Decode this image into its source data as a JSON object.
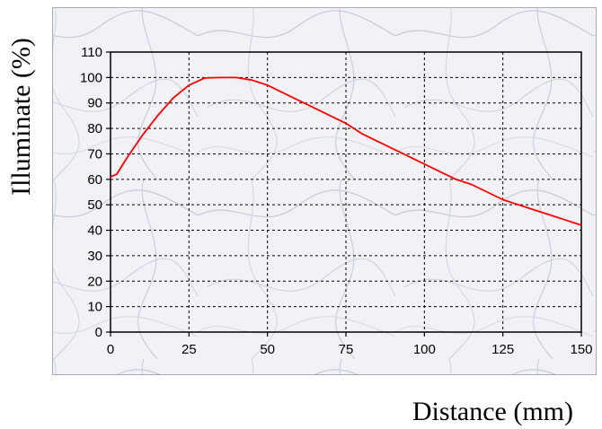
{
  "chart_data": {
    "type": "line",
    "title": "",
    "xlabel": "Distance (mm)",
    "ylabel": "Illuminate (%)",
    "xlim": [
      0,
      150
    ],
    "ylim": [
      0,
      110
    ],
    "x_ticks": [
      0,
      25,
      50,
      75,
      100,
      125,
      150
    ],
    "y_ticks": [
      0,
      10,
      20,
      30,
      40,
      50,
      60,
      70,
      80,
      90,
      100,
      110
    ],
    "grid": true,
    "legend": "none",
    "series": [
      {
        "color": "#ff0000",
        "x": [
          0,
          2,
          5,
          10,
          15,
          20,
          25,
          30,
          35,
          40,
          45,
          50,
          55,
          60,
          65,
          70,
          75,
          80,
          85,
          90,
          95,
          100,
          105,
          110,
          115,
          120,
          125,
          130,
          135,
          140,
          145,
          150
        ],
        "y": [
          61,
          62,
          68,
          77,
          85,
          92,
          97,
          99.8,
          100,
          100,
          99,
          97,
          94,
          91,
          88,
          85,
          82,
          78,
          75,
          72,
          69,
          66,
          63,
          60,
          58,
          55,
          52,
          50,
          48,
          46,
          44,
          42
        ]
      }
    ]
  },
  "colors": {
    "panel_background": "#eeeef4",
    "line": "#ff0000"
  }
}
